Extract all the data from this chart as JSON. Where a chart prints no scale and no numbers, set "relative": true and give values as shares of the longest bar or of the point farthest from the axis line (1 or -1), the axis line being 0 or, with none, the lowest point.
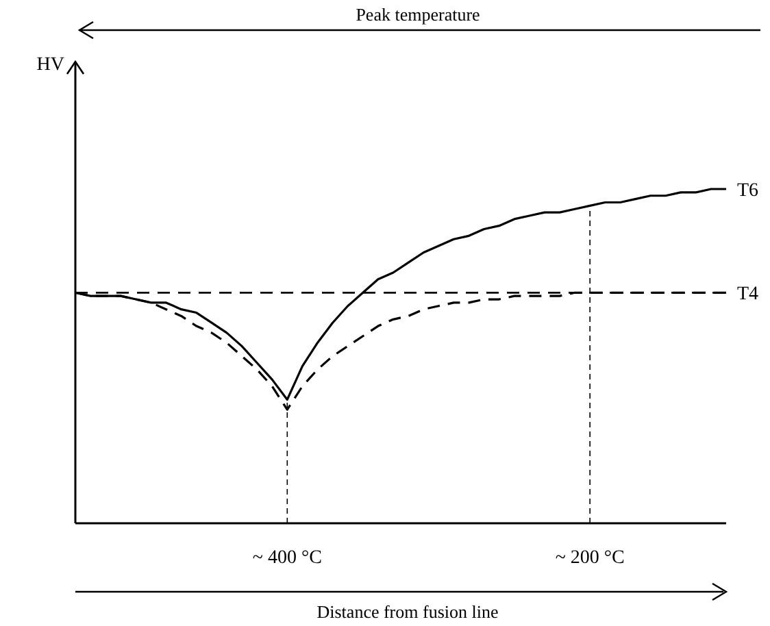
{
  "chart_data": {
    "type": "line",
    "relative": true,
    "xlabel": "Distance from fusion line",
    "annotations": [
      "Peak temperature",
      "HV"
    ],
    "legend": false,
    "categories": [
      null,
      null,
      null,
      null,
      null,
      null,
      null,
      null,
      null,
      null,
      null,
      null,
      null,
      null,
      "~ 400 °C",
      null,
      null,
      null,
      null,
      null,
      null,
      null,
      null,
      null,
      null,
      null,
      null,
      null,
      null,
      null,
      null,
      null,
      null,
      null,
      "~ 200 °C",
      null,
      null,
      null,
      null,
      null,
      null,
      null,
      null,
      null
    ],
    "series": [
      {
        "name": "T6",
        "color": "#000000",
        "line_style": "solid",
        "values": [
          0.69,
          0.68,
          0.68,
          0.68,
          0.67,
          0.66,
          0.66,
          0.64,
          0.63,
          0.6,
          0.57,
          0.53,
          0.48,
          0.43,
          0.37,
          0.47,
          0.54,
          0.6,
          0.65,
          0.69,
          0.73,
          0.75,
          0.78,
          0.81,
          0.83,
          0.85,
          0.86,
          0.88,
          0.89,
          0.91,
          0.92,
          0.93,
          0.93,
          0.94,
          0.95,
          0.96,
          0.96,
          0.97,
          0.98,
          0.98,
          0.99,
          0.99,
          1.0,
          1.0
        ]
      },
      {
        "name": "T4",
        "color": "#000000",
        "line_style": "dashed",
        "values": [
          0.69,
          0.68,
          0.68,
          0.68,
          0.67,
          0.66,
          0.64,
          0.62,
          0.59,
          0.57,
          0.54,
          0.5,
          0.46,
          0.41,
          0.34,
          0.41,
          0.46,
          0.5,
          0.53,
          0.56,
          0.59,
          0.61,
          0.62,
          0.64,
          0.65,
          0.66,
          0.66,
          0.67,
          0.67,
          0.68,
          0.68,
          0.68,
          0.68,
          0.69,
          0.69,
          0.69,
          0.69,
          0.69,
          0.69,
          0.69,
          0.69,
          0.69,
          0.69,
          0.69
        ]
      }
    ],
    "ref_lines": [
      {
        "axis": "x",
        "value": "~ 400 °C",
        "line_style": "dashed",
        "color": "#000000"
      },
      {
        "axis": "x",
        "value": "~ 200 °C",
        "line_style": "dashed",
        "color": "#000000"
      },
      {
        "axis": "y",
        "value": 0.69,
        "line_style": "dashed",
        "color": "#000000"
      }
    ]
  }
}
